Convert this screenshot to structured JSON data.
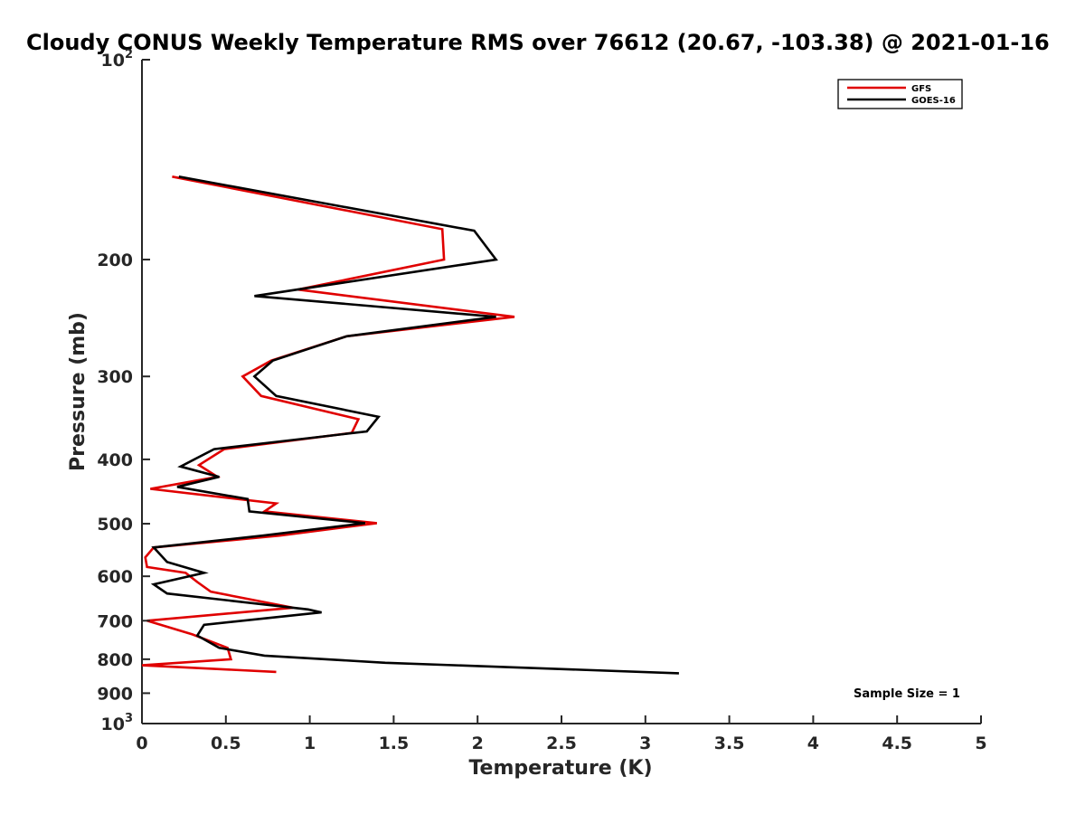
{
  "chart_data": {
    "type": "line",
    "title": "Cloudy CONUS Weekly Temperature RMS over 76612 (20.67, -103.38) @ 2021-01-16",
    "xlabel": "Temperature (K)",
    "ylabel": "Pressure (mb)",
    "xlim": [
      0,
      5
    ],
    "ylim": [
      100,
      1000
    ],
    "y_scale": "log",
    "y_reversed": true,
    "grid": false,
    "x_ticks": [
      0,
      0.5,
      1,
      1.5,
      2,
      2.5,
      3,
      3.5,
      4,
      4.5,
      5
    ],
    "x_tick_labels": [
      "0",
      "0.5",
      "1",
      "1.5",
      "2",
      "2.5",
      "3",
      "3.5",
      "4",
      "4.5",
      "5"
    ],
    "y_ticks": [
      {
        "value": 200,
        "label": "200"
      },
      {
        "value": 300,
        "label": "300"
      },
      {
        "value": 400,
        "label": "400"
      },
      {
        "value": 500,
        "label": "500"
      },
      {
        "value": 600,
        "label": "600"
      },
      {
        "value": 700,
        "label": "700"
      },
      {
        "value": 800,
        "label": "800"
      },
      {
        "value": 900,
        "label": "900"
      }
    ],
    "y_top_label": {
      "base": "10",
      "exp": "2"
    },
    "y_bottom_label": {
      "base": "10",
      "exp": "3"
    },
    "legend_position": "top-right",
    "annotation": "Sample Size = 1",
    "series": [
      {
        "name": "GFS",
        "color": "#e00000",
        "points": [
          [
            0.18,
            150
          ],
          [
            1.79,
            180
          ],
          [
            1.8,
            200
          ],
          [
            0.93,
            222
          ],
          [
            2.22,
            244
          ],
          [
            1.22,
            261
          ],
          [
            0.77,
            284
          ],
          [
            0.6,
            300
          ],
          [
            0.71,
            321
          ],
          [
            1.29,
            348
          ],
          [
            1.25,
            365
          ],
          [
            0.49,
            386
          ],
          [
            0.34,
            408
          ],
          [
            0.45,
            425
          ],
          [
            0.05,
            443
          ],
          [
            0.8,
            466
          ],
          [
            0.73,
            479
          ],
          [
            1.4,
            499
          ],
          [
            0.82,
            521
          ],
          [
            0.07,
            543
          ],
          [
            0.02,
            562
          ],
          [
            0.03,
            581
          ],
          [
            0.26,
            593
          ],
          [
            0.33,
            612
          ],
          [
            0.41,
            633
          ],
          [
            0.9,
            669
          ],
          [
            0.03,
            700
          ],
          [
            0.3,
            734
          ],
          [
            0.51,
            769
          ],
          [
            0.53,
            800
          ],
          [
            0.0,
            817
          ],
          [
            0.8,
            836
          ]
        ]
      },
      {
        "name": "GOES-16",
        "color": "#000000",
        "points": [
          [
            0.22,
            150
          ],
          [
            1.98,
            181
          ],
          [
            2.11,
            200
          ],
          [
            0.67,
            227
          ],
          [
            2.11,
            244
          ],
          [
            1.22,
            261
          ],
          [
            0.78,
            284
          ],
          [
            0.67,
            300
          ],
          [
            0.8,
            321
          ],
          [
            1.41,
            345
          ],
          [
            1.34,
            363
          ],
          [
            0.43,
            386
          ],
          [
            0.23,
            410
          ],
          [
            0.46,
            425
          ],
          [
            0.21,
            440
          ],
          [
            0.63,
            459
          ],
          [
            0.64,
            479
          ],
          [
            1.33,
            499
          ],
          [
            0.72,
            521
          ],
          [
            0.07,
            543
          ],
          [
            0.15,
            571
          ],
          [
            0.37,
            593
          ],
          [
            0.07,
            617
          ],
          [
            0.15,
            637
          ],
          [
            0.99,
            673
          ],
          [
            1.07,
            680
          ],
          [
            0.37,
            710
          ],
          [
            0.33,
            737
          ],
          [
            0.46,
            769
          ],
          [
            0.73,
            790
          ],
          [
            1.45,
            810
          ],
          [
            3.2,
            840
          ]
        ]
      }
    ]
  }
}
